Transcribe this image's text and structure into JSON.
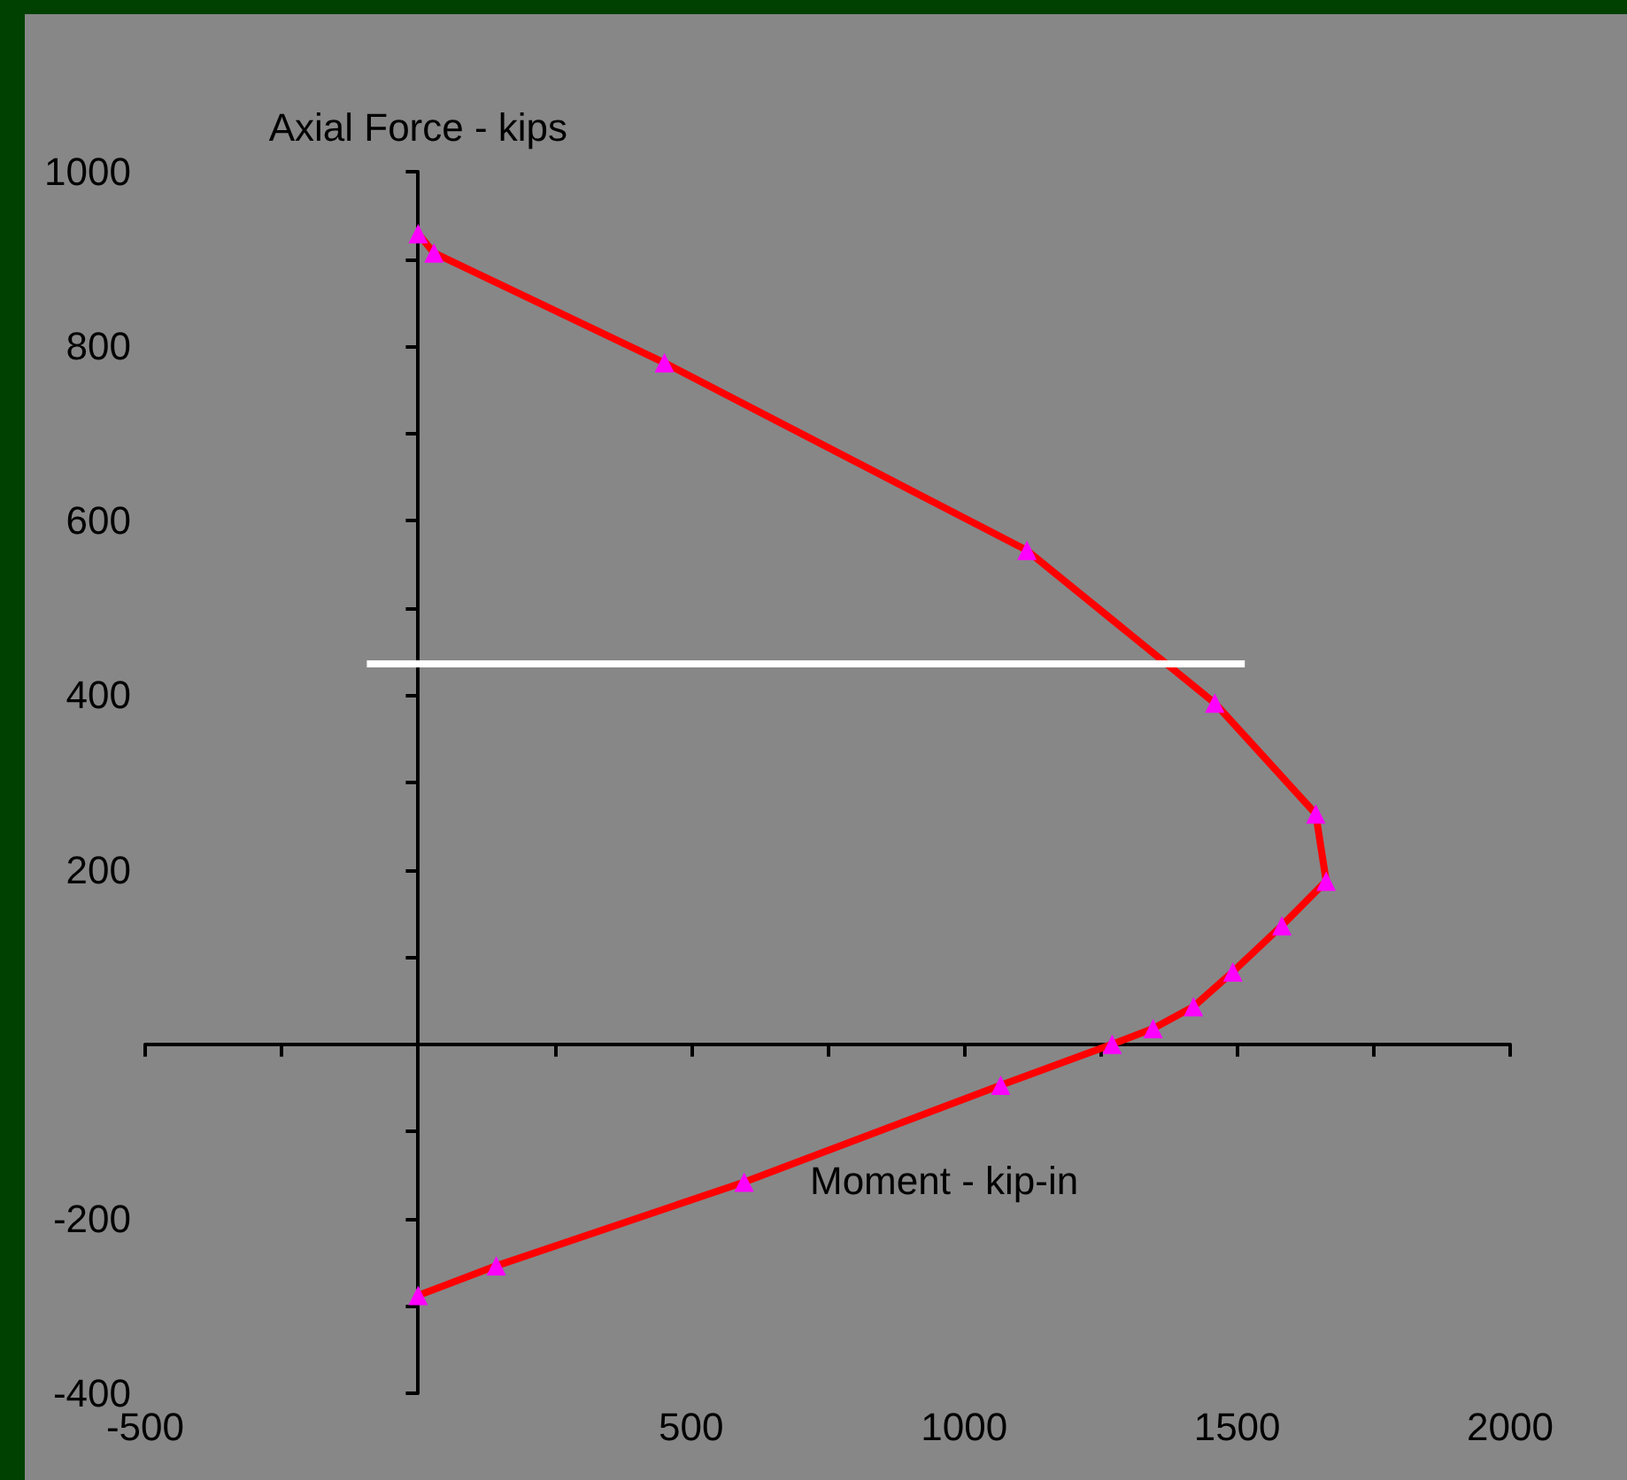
{
  "chart_data": {
    "type": "line",
    "xlabel": "Moment - kip-in",
    "ylabel": "Axial Force - kips",
    "xlim": [
      -500,
      2000
    ],
    "ylim": [
      -400,
      1000
    ],
    "xticks": [
      -500,
      {
        "value": -250,
        "label": null
      },
      {
        "value": 0,
        "label": null
      },
      {
        "value": 250,
        "label": null
      },
      500,
      {
        "value": 750,
        "label": null
      },
      1000,
      {
        "value": 1250,
        "label": null
      },
      1500,
      {
        "value": 1750,
        "label": null
      },
      2000
    ],
    "yticks": [
      -400,
      {
        "value": -300,
        "label": null
      },
      -200,
      {
        "value": -100,
        "label": null
      },
      {
        "value": 0,
        "label": null
      },
      {
        "value": 100,
        "label": null
      },
      200,
      {
        "value": 300,
        "label": null
      },
      400,
      {
        "value": 500,
        "label": null
      },
      600,
      {
        "value": 700,
        "label": null
      },
      800,
      {
        "value": 900,
        "label": null
      },
      1000
    ],
    "series": [
      {
        "color": "#ff0000",
        "marker": "triangle",
        "x": [
          0,
          29,
          451,
          1115,
          1459,
          1644,
          1663,
          1582,
          1492,
          1420,
          1346,
          1271,
          1067,
          597,
          143,
          0
        ],
        "values": [
          929,
          907,
          781,
          566,
          391,
          264,
          187,
          136,
          83,
          43,
          18,
          0,
          -47,
          -158,
          -254,
          -288
        ]
      },
      {
        "color": "#ffffff",
        "marker": "none",
        "x": [
          -94,
          1514
        ],
        "values": [
          436,
          436
        ]
      }
    ]
  }
}
